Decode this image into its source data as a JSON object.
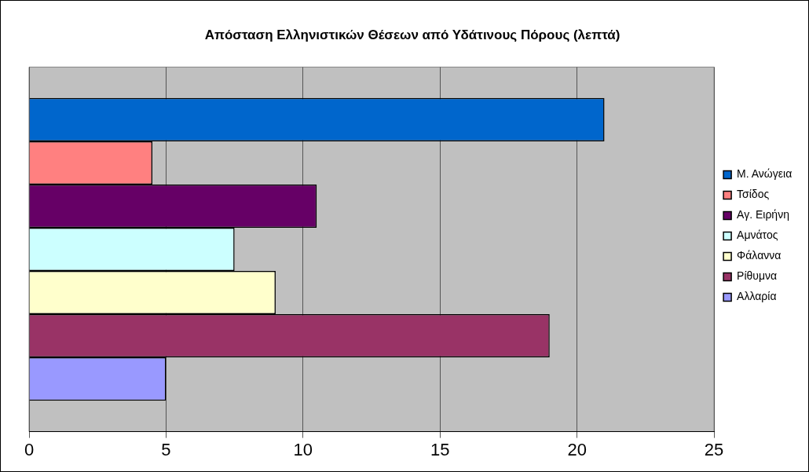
{
  "chart_data": {
    "type": "bar",
    "orientation": "horizontal",
    "title": "Απόσταση Ελληνιστικών Θέσεων από Υδάτινους Πόρους (λεπτά)",
    "categories": [
      null
    ],
    "series": [
      {
        "name": "Μ. Ανώγεια",
        "color": "#0066cc",
        "values": [
          21
        ]
      },
      {
        "name": "Τσίδος",
        "color": "#ff8080",
        "values": [
          4.5
        ]
      },
      {
        "name": "Αγ. Ειρήνη",
        "color": "#660066",
        "values": [
          10.5
        ]
      },
      {
        "name": "Αμνάτος",
        "color": "#ccffff",
        "values": [
          7.5
        ]
      },
      {
        "name": "Φάλαννα",
        "color": "#ffffcc",
        "values": [
          9
        ]
      },
      {
        "name": "Ρίθυμνα",
        "color": "#993366",
        "values": [
          19
        ]
      },
      {
        "name": "Αλλαρία",
        "color": "#9999ff",
        "values": [
          5
        ]
      }
    ],
    "xlim": [
      0,
      25
    ],
    "xticks": [
      0,
      5,
      10,
      15,
      20,
      25
    ],
    "grid": "x",
    "legend": "right"
  }
}
